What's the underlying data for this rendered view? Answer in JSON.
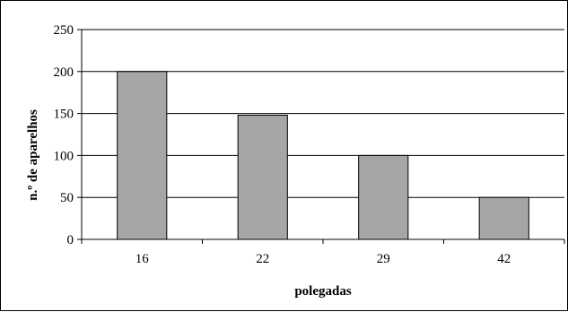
{
  "chart_data": {
    "type": "bar",
    "categories": [
      "16",
      "22",
      "29",
      "42"
    ],
    "values": [
      200,
      148,
      100,
      50
    ],
    "title": "",
    "xlabel": "polegadas",
    "ylabel": "n.º de aparelhos",
    "ylim": [
      0,
      250
    ],
    "yticks": [
      "0",
      "50",
      "100",
      "150",
      "200",
      "250"
    ],
    "grid": true,
    "legend": "none",
    "bar_color": "#a6a6a6",
    "bar_edge_color": "#000000",
    "grid_color": "#000000"
  }
}
